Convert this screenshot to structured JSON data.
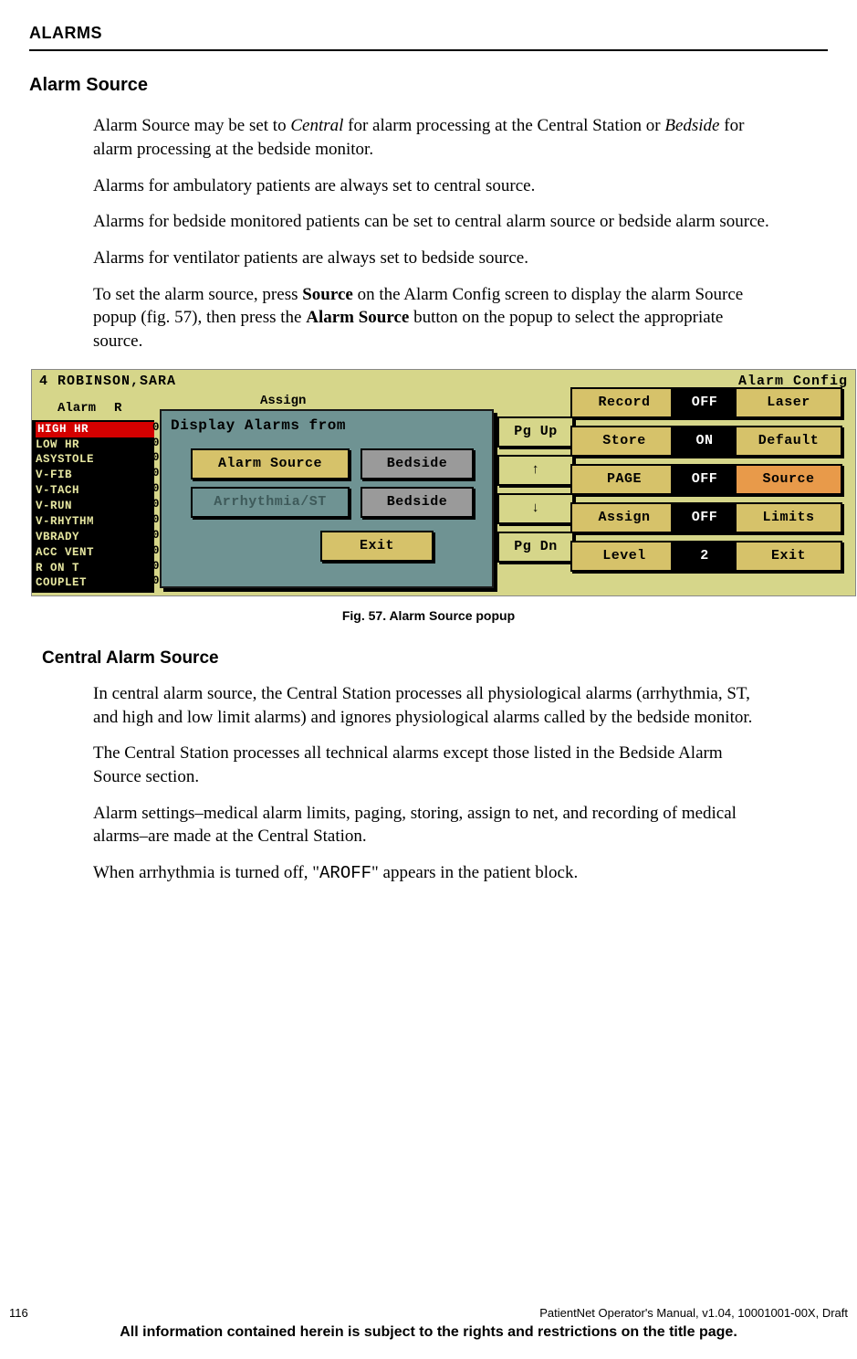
{
  "header": "ALARMS",
  "section_title": "Alarm Source",
  "paragraphs": {
    "p1a": "Alarm Source may be set to ",
    "p1_it1": "Central",
    "p1b": " for alarm processing at the Central Station or ",
    "p1_it2": "Bedside",
    "p1c": " for alarm processing at the bedside monitor.",
    "p2": "Alarms for ambulatory patients are always set to central source.",
    "p3": "Alarms for bedside monitored patients can be set to central alarm source or bedside alarm source.",
    "p4": "Alarms for ventilator patients are always set to bedside source.",
    "p5a": "To set the alarm source, press ",
    "p5_b1": "Source",
    "p5b": " on the Alarm Config screen to display the alarm Source popup (fig. 57), then press the ",
    "p5_b2": "Alarm Source",
    "p5c": " button on the popup to select the appropriate source."
  },
  "figure": {
    "title_left": "4   ROBINSON,SARA",
    "title_right": "Alarm Config",
    "col_alarm": "Alarm",
    "col_r": "R",
    "assign": "Assign",
    "alarms": [
      "HIGH  HR",
      "LOW HR",
      "ASYSTOLE",
      "V-FIB",
      "V-TACH",
      "V-RUN",
      "V-RHYTHM",
      "VBRADY",
      "ACC VENT",
      "R ON T",
      "COUPLET"
    ],
    "popup_title": "Display Alarms from",
    "popup_btn1": "Alarm Source",
    "popup_val1": "Bedside",
    "popup_btn2": "Arrhythmia/ST",
    "popup_val2": "Bedside",
    "popup_exit": "Exit",
    "nav": [
      "Pg Up",
      "↑",
      "↓",
      "Pg Dn"
    ],
    "mid_labels": [
      "Record",
      "Store",
      "PAGE",
      "Assign",
      "Level"
    ],
    "mid_vals": [
      "OFF",
      "ON",
      "OFF",
      "OFF",
      "2"
    ],
    "right_labels": [
      "Laser",
      "Default",
      "Source",
      "Limits",
      "Exit"
    ],
    "colors": {
      "panel_bg": "#d6d68a",
      "popup_bg": "#6f9393",
      "btn_yellow": "#d6c26a",
      "btn_gray": "#9a9a9a",
      "black": "#000000",
      "red": "#d40000"
    }
  },
  "caption": "Fig. 57. Alarm Source popup",
  "subsection_title": "Central Alarm Source",
  "sub_paragraphs": {
    "s1": "In central alarm source, the Central Station processes all physiological alarms (arrhythmia, ST, and high and low limit alarms) and ignores physiological alarms called by the bedside monitor.",
    "s2": "The Central Station processes all technical alarms except those listed in the Bedside Alarm Source section.",
    "s3": "Alarm settings–medical alarm limits, paging, storing, assign to net, and recording of medical alarms–are made at the Central Station.",
    "s4a": "When arrhythmia is turned off, \"",
    "s4_mono": "AROFF",
    "s4b": "\" appears in the patient block."
  },
  "footer": {
    "page_num": "116",
    "doc_info": "PatientNet Operator's Manual, v1.04, 10001001-00X, Draft",
    "restriction": "All information contained herein is subject to the rights and restrictions on the title page."
  }
}
